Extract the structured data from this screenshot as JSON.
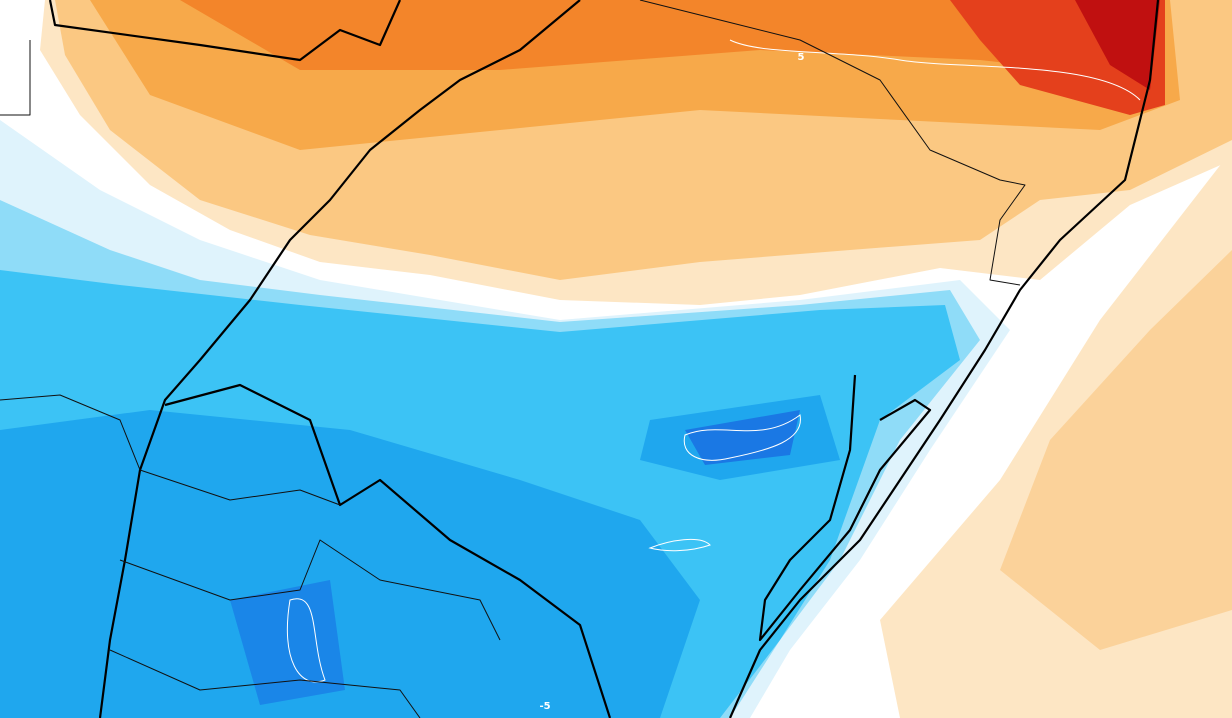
{
  "contour_labels": {
    "positive": "5",
    "negative": "-5"
  }
}
